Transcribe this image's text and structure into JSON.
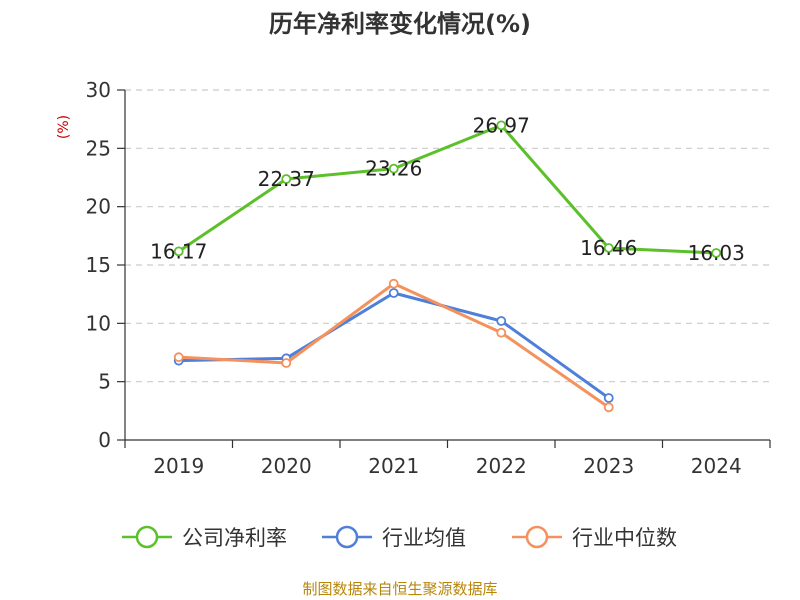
{
  "chart_data": {
    "type": "line",
    "title": "历年净利率变化情况(%)",
    "ylabel": "(%)",
    "xlabel": "",
    "categories": [
      "2019",
      "2020",
      "2021",
      "2022",
      "2023",
      "2024"
    ],
    "ylim": [
      0,
      30
    ],
    "yticks": [
      "0",
      "5",
      "10",
      "15",
      "20",
      "25",
      "30"
    ],
    "grid": true,
    "legend_position": "bottom",
    "series": [
      {
        "name": "公司净利率",
        "color": "#5cc02a",
        "values": [
          16.17,
          22.37,
          23.26,
          26.97,
          16.46,
          16.03
        ],
        "labels": [
          "16.17",
          "22.37",
          "23.26",
          "26.97",
          "16.46",
          "16.03"
        ]
      },
      {
        "name": "行业均值",
        "color": "#4f7fd8",
        "values": [
          6.8,
          7.0,
          12.6,
          10.2,
          3.6,
          null
        ]
      },
      {
        "name": "行业中位数",
        "color": "#f4915c",
        "values": [
          7.1,
          6.6,
          13.4,
          9.2,
          2.8,
          null
        ]
      }
    ]
  },
  "source": "制图数据来自恒生聚源数据库",
  "colors": {
    "ylabel": "#cc0000",
    "source": "#b8860b",
    "axis": "#333333",
    "grid": "#cccccc"
  }
}
